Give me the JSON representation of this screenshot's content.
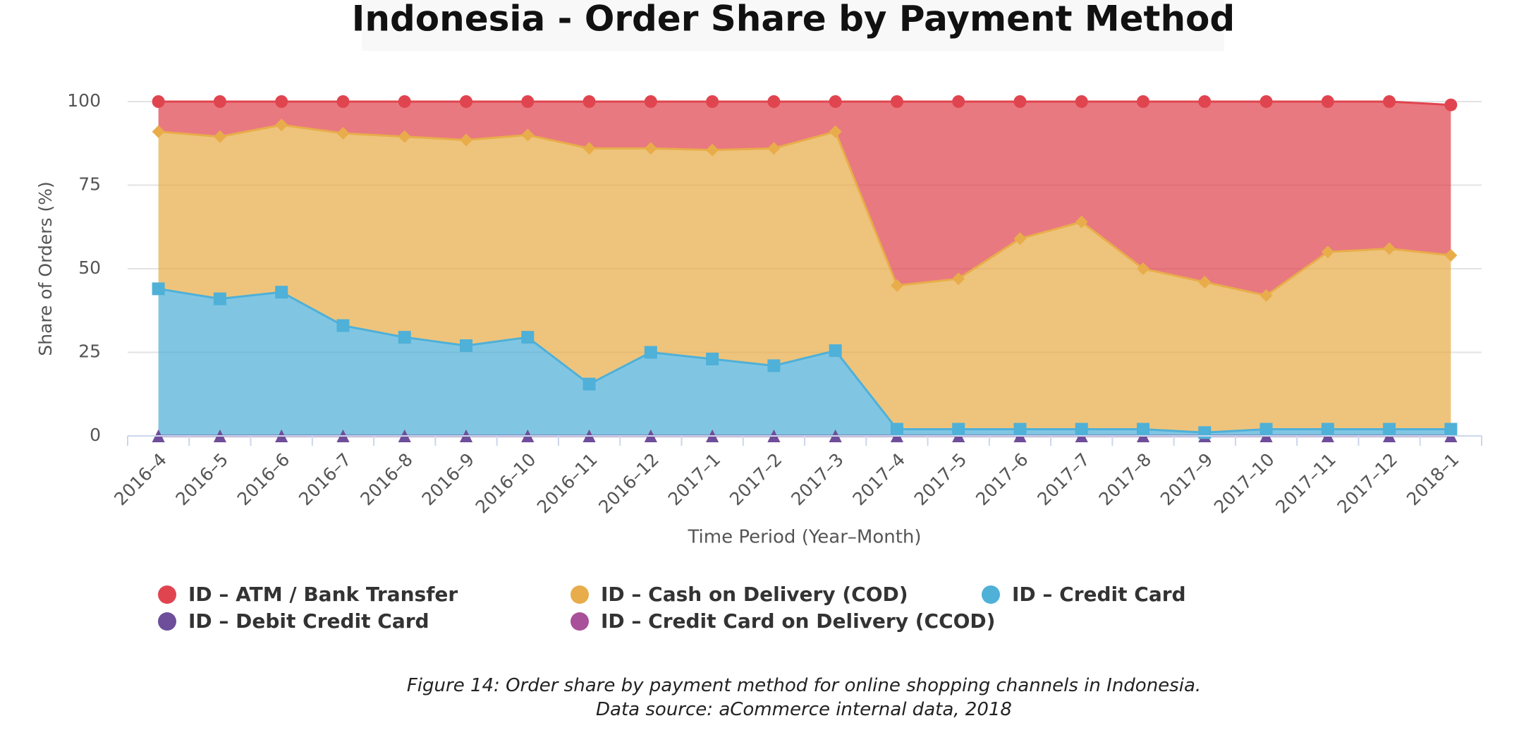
{
  "chart_data": {
    "type": "stacked_area",
    "title": "Indonesia - Order Share by Payment Method",
    "x_label": "Time Period (Year–Month)",
    "y_label": "Share of Orders (%)",
    "caption": "Figure 14: Order share by payment method for online shopping channels in Indonesia. Data source: aCommerce internal data, 2018",
    "categories": [
      "2016–4",
      "2016–5",
      "2016–6",
      "2016–7",
      "2016–8",
      "2016–9",
      "2016–10",
      "2016–11",
      "2016–12",
      "2017–1",
      "2017–2",
      "2017–3",
      "2017–4",
      "2017–5",
      "2017–6",
      "2017–7",
      "2017–8",
      "2017–9",
      "2017–10",
      "2017–11",
      "2017–12",
      "2018–1"
    ],
    "ylim": [
      0,
      100
    ],
    "yticks": [
      0,
      25,
      50,
      75,
      100
    ],
    "grid": true,
    "series": [
      {
        "name": "ID – ATM / Bank Transfer",
        "color": "#e0454f",
        "marker": "circle",
        "values": [
          9,
          10.5,
          7,
          9.5,
          10.5,
          11.5,
          10,
          14,
          14,
          14.5,
          14,
          9,
          55,
          53,
          41,
          36,
          50,
          54,
          58,
          45,
          44,
          45
        ]
      },
      {
        "name": "ID – Cash on Delivery (COD)",
        "color": "#e8ad4a",
        "marker": "diamond",
        "values": [
          47,
          48.5,
          50,
          57.5,
          60,
          61.5,
          60.5,
          70.5,
          61,
          62.5,
          65,
          65.5,
          43,
          45,
          57,
          62,
          48,
          45,
          40,
          53,
          54,
          52
        ]
      },
      {
        "name": "ID – Credit Card",
        "color": "#4fb0d8",
        "marker": "square",
        "values": [
          44,
          41,
          43,
          33,
          29.5,
          27,
          29.5,
          15.5,
          25,
          23,
          21,
          25.5,
          2,
          2,
          2,
          2,
          2,
          1,
          2,
          2,
          2,
          2
        ]
      },
      {
        "name": "ID – Debit Credit Card",
        "color": "#6e4e9a",
        "marker": "triangle",
        "values": [
          0,
          0,
          0,
          0,
          0,
          0,
          0,
          0,
          0,
          0,
          0,
          0,
          0,
          0,
          0,
          0,
          0,
          0,
          0,
          0,
          0,
          0
        ]
      },
      {
        "name": "ID – Credit Card on Delivery (CCOD)",
        "color": "#a9509a",
        "marker": "triangle",
        "values": [
          0,
          0,
          0,
          0,
          0,
          0,
          0,
          0,
          0,
          0,
          0,
          0,
          0,
          0,
          0,
          0,
          0,
          0,
          0,
          0,
          0,
          0
        ]
      }
    ]
  }
}
